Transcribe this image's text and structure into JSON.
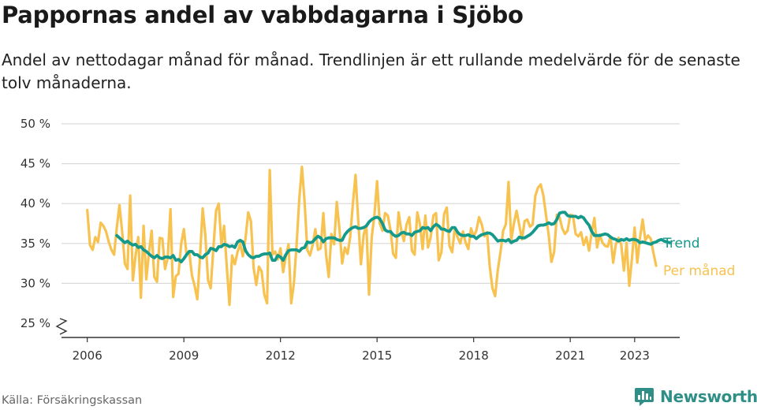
{
  "header": {
    "title": "Pappornas andel av vabbdagarna i Sjöbo",
    "subtitle": "Andel av nettodagar månad för månad. Trendlinjen är ett rullande medelvärde för de senaste tolv månaderna."
  },
  "footer": {
    "source": "Källa: Försäkringskassan",
    "brand": "Newsworthy",
    "brand_icon": "newsworthy-logo-icon"
  },
  "colors": {
    "monthly": "#f7c24f",
    "trend": "#14998a",
    "grid": "#d9d9d9",
    "axis": "#333333",
    "brand": "#2f8f87"
  },
  "chart_data": {
    "type": "line",
    "x_unit": "year",
    "xlim": [
      2005.2,
      2024.4
    ],
    "ylim": [
      25,
      50
    ],
    "y_ticks": [
      25,
      30,
      35,
      40,
      45,
      50
    ],
    "y_tick_labels": [
      "25 %",
      "30 %",
      "35 %",
      "40 %",
      "45 %",
      "50 %"
    ],
    "x_ticks": [
      2006,
      2009,
      2012,
      2015,
      2018,
      2021,
      2023
    ],
    "x_tick_labels": [
      "2006",
      "2009",
      "2012",
      "2015",
      "2018",
      "2021",
      "2023"
    ],
    "y_axis_break": true,
    "grid": "horizontal",
    "legend": "inline labels at right end of lines",
    "series": [
      {
        "name": "Per månad",
        "color": "#f7c24f",
        "x_start": 2006.0,
        "step": 0.0833333,
        "values": [
          39.2,
          34.8,
          34.2,
          35.8,
          35.2,
          37.6,
          37.2,
          36.5,
          35.2,
          34.2,
          33.6,
          37.0,
          39.8,
          36.5,
          32.5,
          31.8,
          41.0,
          30.4,
          33.5,
          35.8,
          28.2,
          37.2,
          30.5,
          33.8,
          36.6,
          30.8,
          30.2,
          35.7,
          35.6,
          31.8,
          33.2,
          39.3,
          28.3,
          30.9,
          31.2,
          35.0,
          36.8,
          33.6,
          34.0,
          31.0,
          29.7,
          28.0,
          33.2,
          39.4,
          36.0,
          30.4,
          29.4,
          34.4,
          39.1,
          40.0,
          34.8,
          37.2,
          32.1,
          27.3,
          33.5,
          32.4,
          33.9,
          35.0,
          33.4,
          35.7,
          38.9,
          37.8,
          32.0,
          29.8,
          32.1,
          31.5,
          28.6,
          27.5,
          44.2,
          33.6,
          34.0,
          33.0,
          34.4,
          31.4,
          33.4,
          34.9,
          27.5,
          30.0,
          34.8,
          40.5,
          44.6,
          40.2,
          34.2,
          33.5,
          34.8,
          36.8,
          34.2,
          34.4,
          38.8,
          33.6,
          30.8,
          36.2,
          34.9,
          40.2,
          36.8,
          32.5,
          34.5,
          33.7,
          35.8,
          40.0,
          43.6,
          37.9,
          32.4,
          36.1,
          37.3,
          28.6,
          35.8,
          38.5,
          42.8,
          37.5,
          36.6,
          38.8,
          38.5,
          36.7,
          33.7,
          33.2,
          38.9,
          36.7,
          35.3,
          37.4,
          38.3,
          34.1,
          33.6,
          38.9,
          37.4,
          34.3,
          38.5,
          34.5,
          35.8,
          38.5,
          38.8,
          32.9,
          33.9,
          38.7,
          39.5,
          34.7,
          33.9,
          37.0,
          35.8,
          35.0,
          36.5,
          35.1,
          34.3,
          36.9,
          35.9,
          36.6,
          38.3,
          37.4,
          35.9,
          36.4,
          32.1,
          29.4,
          28.4,
          31.7,
          33.9,
          36.6,
          37.4,
          42.7,
          35.4,
          37.5,
          39.1,
          37.3,
          35.5,
          37.8,
          38.0,
          37.1,
          37.4,
          41.0,
          42.0,
          42.4,
          41.0,
          38.5,
          36.0,
          32.7,
          33.9,
          38.6,
          38.3,
          36.9,
          36.2,
          36.6,
          38.6,
          38.5,
          36.2,
          35.9,
          36.4,
          34.8,
          35.8,
          34.1,
          36.4,
          38.2,
          34.5,
          36.1,
          35.1,
          34.7,
          34.6,
          35.9,
          32.6,
          34.9,
          35.7,
          34.9,
          31.6,
          35.1,
          29.7,
          33.1,
          37.0,
          32.6,
          35.7,
          38.0,
          35.4,
          36.0,
          35.6,
          33.8,
          32.2
        ]
      },
      {
        "name": "Trend",
        "color": "#14998a",
        "x_start": 2006.9167,
        "step": 0.0833333,
        "values": [
          36.0,
          35.7,
          35.4,
          35.1,
          35.3,
          35.0,
          34.8,
          34.9,
          34.5,
          34.6,
          34.2,
          34.0,
          33.7,
          33.4,
          33.2,
          33.5,
          33.2,
          33.1,
          33.3,
          33.3,
          33.2,
          33.5,
          32.9,
          33.0,
          32.7,
          33.1,
          33.6,
          34.0,
          34.0,
          33.6,
          33.6,
          33.3,
          33.2,
          33.6,
          33.8,
          34.4,
          34.3,
          34.1,
          34.6,
          34.6,
          34.9,
          34.8,
          34.6,
          34.7,
          34.5,
          35.2,
          35.4,
          35.2,
          34.1,
          33.6,
          33.3,
          33.2,
          33.4,
          33.4,
          33.6,
          33.7,
          33.7,
          33.8,
          32.9,
          32.9,
          33.5,
          33.3,
          32.9,
          33.6,
          34.1,
          34.2,
          34.2,
          34.2,
          34.0,
          34.4,
          34.5,
          35.2,
          35.1,
          35.2,
          35.6,
          35.9,
          35.7,
          35.2,
          35.6,
          35.7,
          35.7,
          35.7,
          35.5,
          35.4,
          35.4,
          36.1,
          36.5,
          36.8,
          37.0,
          37.1,
          36.9,
          36.9,
          37.0,
          37.2,
          37.7,
          38.0,
          38.2,
          38.3,
          38.1,
          37.5,
          36.7,
          36.5,
          36.5,
          36.1,
          35.9,
          36.0,
          36.3,
          36.4,
          36.2,
          36.2,
          36.0,
          36.4,
          36.5,
          36.6,
          37.0,
          36.9,
          37.0,
          36.6,
          37.1,
          37.4,
          37.2,
          36.8,
          36.8,
          36.6,
          36.5,
          37.0,
          37.0,
          36.4,
          36.1,
          36.0,
          36.0,
          36.1,
          35.9,
          35.9,
          35.6,
          35.9,
          36.1,
          36.2,
          36.3,
          36.3,
          36.1,
          35.7,
          35.3,
          35.4,
          35.4,
          35.3,
          35.5,
          35.1,
          35.3,
          35.4,
          35.8,
          35.7,
          35.7,
          35.9,
          36.1,
          36.4,
          36.8,
          37.2,
          37.3,
          37.3,
          37.4,
          37.6,
          37.4,
          37.5,
          38.0,
          38.8,
          38.9,
          38.9,
          38.5,
          38.4,
          38.4,
          38.4,
          38.2,
          38.4,
          38.2,
          37.7,
          37.3,
          36.5,
          36.0,
          36.0,
          36.0,
          36.1,
          36.2,
          36.1,
          35.8,
          35.6,
          35.5,
          35.3,
          35.5,
          35.4,
          35.6,
          35.4,
          35.5,
          35.5,
          35.4,
          35.1,
          35.2,
          35.1,
          35.0,
          34.9,
          35.1,
          35.2,
          35.4,
          35.5,
          35.3,
          35.2,
          35.1
        ]
      }
    ]
  }
}
